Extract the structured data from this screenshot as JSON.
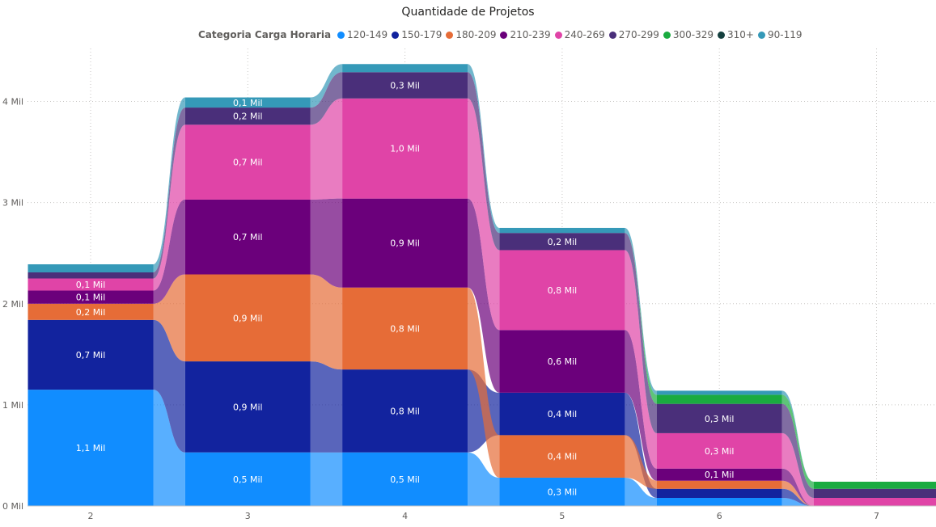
{
  "chart_data": {
    "type": "ribbon",
    "title": "Quantidade de Projetos",
    "legend_title": "Categoria Carga Horaria",
    "legend_position": "top",
    "categories": [
      "2",
      "3",
      "4",
      "5",
      "6",
      "7"
    ],
    "ylim": [
      0,
      4000
    ],
    "yticks": [
      0,
      1000,
      2000,
      3000,
      4000
    ],
    "ytick_labels": [
      "0 Mil",
      "1 Mil",
      "2 Mil",
      "3 Mil",
      "4 Mil"
    ],
    "grid": true,
    "series": [
      {
        "name": "120-149",
        "color": "#118DFF",
        "values": [
          1150,
          530,
          530,
          280,
          80,
          0
        ],
        "labels": [
          "1,1 Mil",
          "0,5 Mil",
          "0,5 Mil",
          "0,3 Mil",
          "",
          ""
        ]
      },
      {
        "name": "150-179",
        "color": "#12239E",
        "values": [
          690,
          900,
          820,
          420,
          90,
          0
        ],
        "labels": [
          "0,7 Mil",
          "0,9 Mil",
          "0,8 Mil",
          "0,4 Mil",
          "",
          ""
        ]
      },
      {
        "name": "180-209",
        "color": "#E66C37",
        "values": [
          160,
          860,
          810,
          420,
          80,
          0
        ],
        "labels": [
          "0,2 Mil",
          "0,9 Mil",
          "0,8 Mil",
          "0,4 Mil",
          "",
          ""
        ]
      },
      {
        "name": "210-239",
        "color": "#6B007B",
        "values": [
          130,
          740,
          880,
          620,
          120,
          0
        ],
        "labels": [
          "0,1 Mil",
          "0,7 Mil",
          "0,9 Mil",
          "0,6 Mil",
          "0,1 Mil",
          ""
        ]
      },
      {
        "name": "240-269",
        "color": "#E044A7",
        "values": [
          120,
          740,
          990,
          790,
          350,
          80
        ],
        "labels": [
          "0,1 Mil",
          "0,7 Mil",
          "1,0 Mil",
          "0,8 Mil",
          "0,3 Mil",
          ""
        ]
      },
      {
        "name": "270-299",
        "color": "#4A2F7A",
        "values": [
          60,
          170,
          260,
          170,
          290,
          90
        ],
        "labels": [
          "",
          "0,2 Mil",
          "0,3 Mil",
          "0,2 Mil",
          "0,3 Mil",
          ""
        ]
      },
      {
        "name": "300-329",
        "color": "#1AAB40",
        "values": [
          0,
          0,
          0,
          0,
          90,
          70
        ],
        "labels": [
          "",
          "",
          "",
          "",
          "",
          ""
        ]
      },
      {
        "name": "310+",
        "color": "#15403F",
        "values": [
          0,
          0,
          0,
          0,
          0,
          0
        ],
        "labels": [
          "",
          "",
          "",
          "",
          "",
          ""
        ]
      },
      {
        "name": "90-119",
        "color": "#3599B8",
        "values": [
          80,
          100,
          80,
          50,
          40,
          0
        ],
        "labels": [
          "",
          "0,1 Mil",
          "",
          "",
          "",
          ""
        ]
      }
    ],
    "stack_order_bottom_to_top": [
      [
        "120-149",
        "150-179",
        "180-209",
        "210-239",
        "240-269",
        "270-299",
        "300-329",
        "310+",
        "90-119"
      ],
      [
        "120-149",
        "150-179",
        "180-209",
        "210-239",
        "240-269",
        "270-299",
        "300-329",
        "310+",
        "90-119"
      ],
      [
        "120-149",
        "150-179",
        "180-209",
        "210-239",
        "240-269",
        "270-299",
        "300-329",
        "310+",
        "90-119"
      ],
      [
        "120-149",
        "180-209",
        "150-179",
        "210-239",
        "240-269",
        "270-299",
        "300-329",
        "310+",
        "90-119"
      ],
      [
        "120-149",
        "150-179",
        "180-209",
        "210-239",
        "240-269",
        "270-299",
        "300-329",
        "310+",
        "90-119"
      ],
      [
        "120-149",
        "150-179",
        "180-209",
        "210-239",
        "240-269",
        "270-299",
        "300-329",
        "310+",
        "90-119"
      ]
    ]
  }
}
